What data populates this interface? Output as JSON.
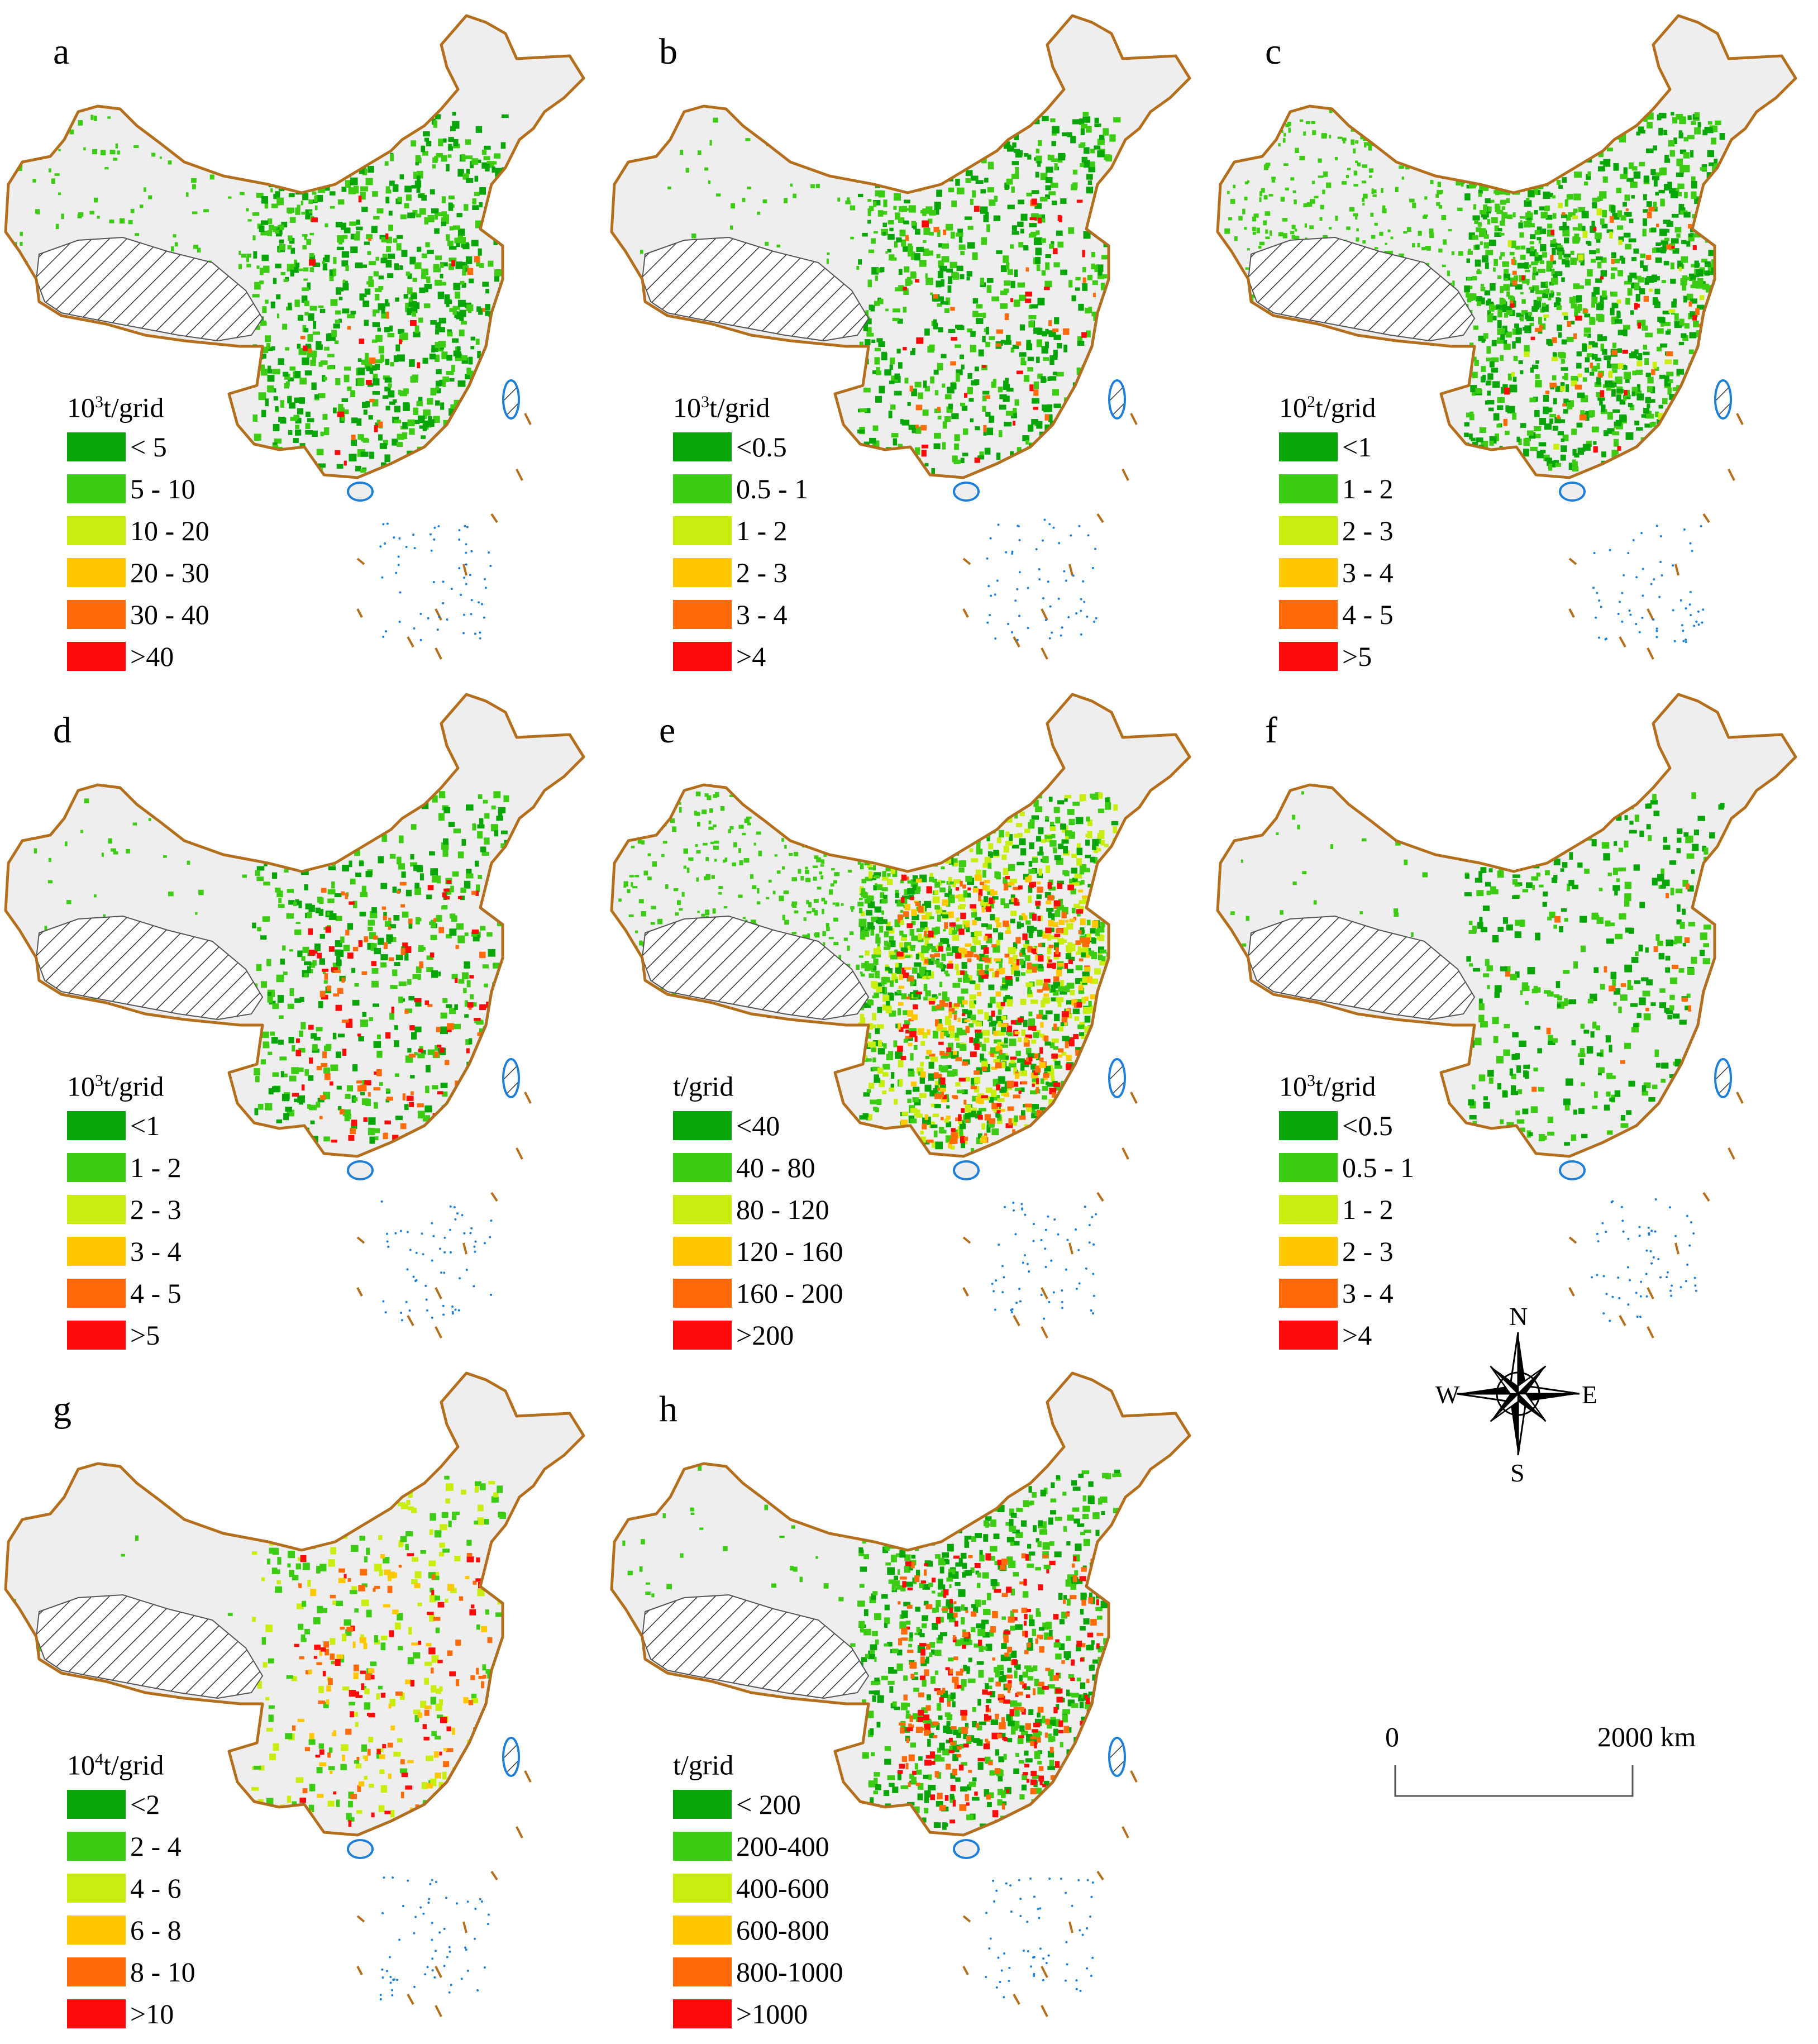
{
  "colors": {
    "class1": "#08a608",
    "class2": "#3ccc13",
    "class3": "#c8ee10",
    "class4": "#ffc800",
    "class5": "#ff6a0a",
    "class6": "#ff0a0a",
    "land": "#eeeeee",
    "border": "#b46f1d",
    "coast": "#1e7fd8"
  },
  "panels": [
    {
      "letter": "a",
      "unit_base": "10",
      "unit_exp": "3",
      "unit_rest": "t/grid",
      "classes": [
        "< 5",
        "5 - 10",
        "10 - 20",
        "20 - 30",
        "30 - 40",
        ">40"
      ]
    },
    {
      "letter": "b",
      "unit_base": "10",
      "unit_exp": "3",
      "unit_rest": "t/grid",
      "classes": [
        "<0.5",
        "0.5 - 1",
        "1 - 2",
        "2 - 3",
        "3 - 4",
        ">4"
      ]
    },
    {
      "letter": "c",
      "unit_base": "10",
      "unit_exp": "2",
      "unit_rest": "t/grid",
      "classes": [
        "<1",
        "1 - 2",
        "2 - 3",
        "3 - 4",
        "4 - 5",
        ">5"
      ]
    },
    {
      "letter": "d",
      "unit_base": "10",
      "unit_exp": "3",
      "unit_rest": "t/grid",
      "classes": [
        "<1",
        "1 - 2",
        "2 - 3",
        "3 - 4",
        "4 - 5",
        ">5"
      ]
    },
    {
      "letter": "e",
      "unit_base": "",
      "unit_exp": "",
      "unit_rest": "t/grid",
      "classes": [
        "<40",
        "40 - 80",
        "80 - 120",
        "120 - 160",
        "160 - 200",
        ">200"
      ]
    },
    {
      "letter": "f",
      "unit_base": "10",
      "unit_exp": "3",
      "unit_rest": "t/grid",
      "classes": [
        "<0.5",
        "0.5 - 1",
        "1 - 2",
        "2 - 3",
        "3 - 4",
        ">4"
      ]
    },
    {
      "letter": "g",
      "unit_base": "10",
      "unit_exp": "4",
      "unit_rest": "t/grid",
      "classes": [
        "<2",
        "2 - 4",
        "4 - 6",
        "6 - 8",
        "8 - 10",
        ">10"
      ]
    },
    {
      "letter": "h",
      "unit_base": "",
      "unit_exp": "",
      "unit_rest": "t/grid",
      "classes": [
        "< 200",
        "200-400",
        "400-600",
        "600-800",
        "800-1000",
        ">1000"
      ]
    }
  ],
  "compass": {
    "n": "N",
    "s": "S",
    "e": "E",
    "w": "W"
  },
  "scale_bar": {
    "start_label": "0",
    "end_label": "2000  km"
  }
}
